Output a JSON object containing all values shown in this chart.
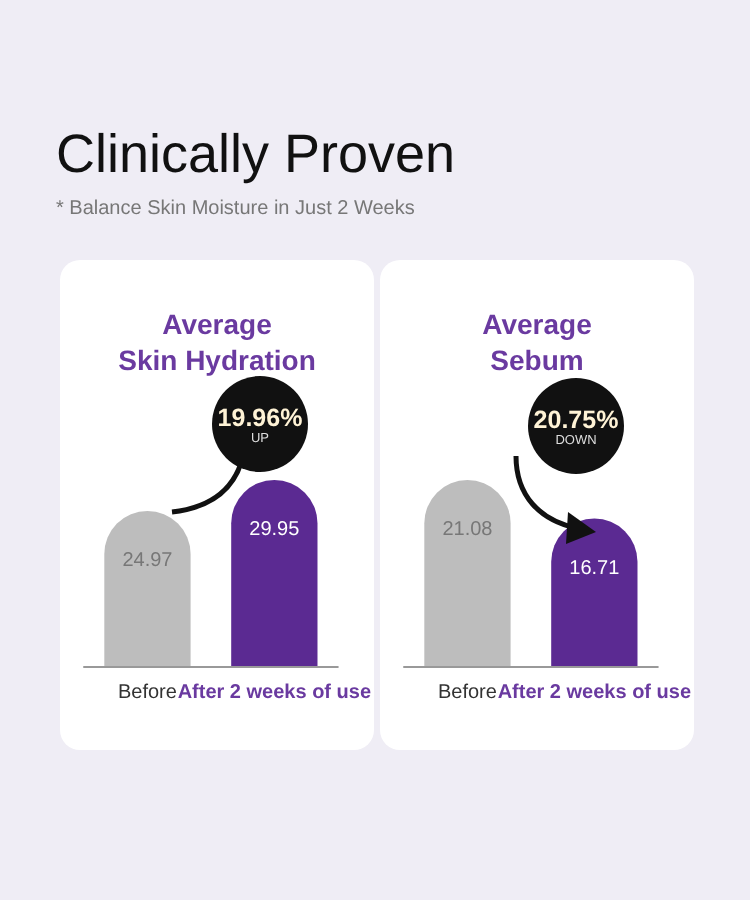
{
  "chart_data": [
    {
      "type": "other",
      "title": "Clinically Proven",
      "subtitle": "* Balance Skin Moisture in Just 2 Weeks"
    },
    {
      "type": "bar",
      "title": "Average\nSkin Hydration",
      "categories": [
        "Before",
        "After 2 weeks of use"
      ],
      "values": [
        24.97,
        29.95
      ],
      "colors": [
        "#bdbdbd",
        "#5b2a92"
      ],
      "data_labels": true,
      "annotations": [
        "19.96%",
        "UP"
      ]
    },
    {
      "type": "bar",
      "title": "Average\nSebum",
      "categories": [
        "Before",
        "After 2 weeks of use"
      ],
      "values": [
        21.08,
        16.71
      ],
      "colors": [
        "#bdbdbd",
        "#5b2a92"
      ],
      "data_labels": true,
      "annotations": [
        "20.75%",
        "DOWN"
      ]
    }
  ]
}
